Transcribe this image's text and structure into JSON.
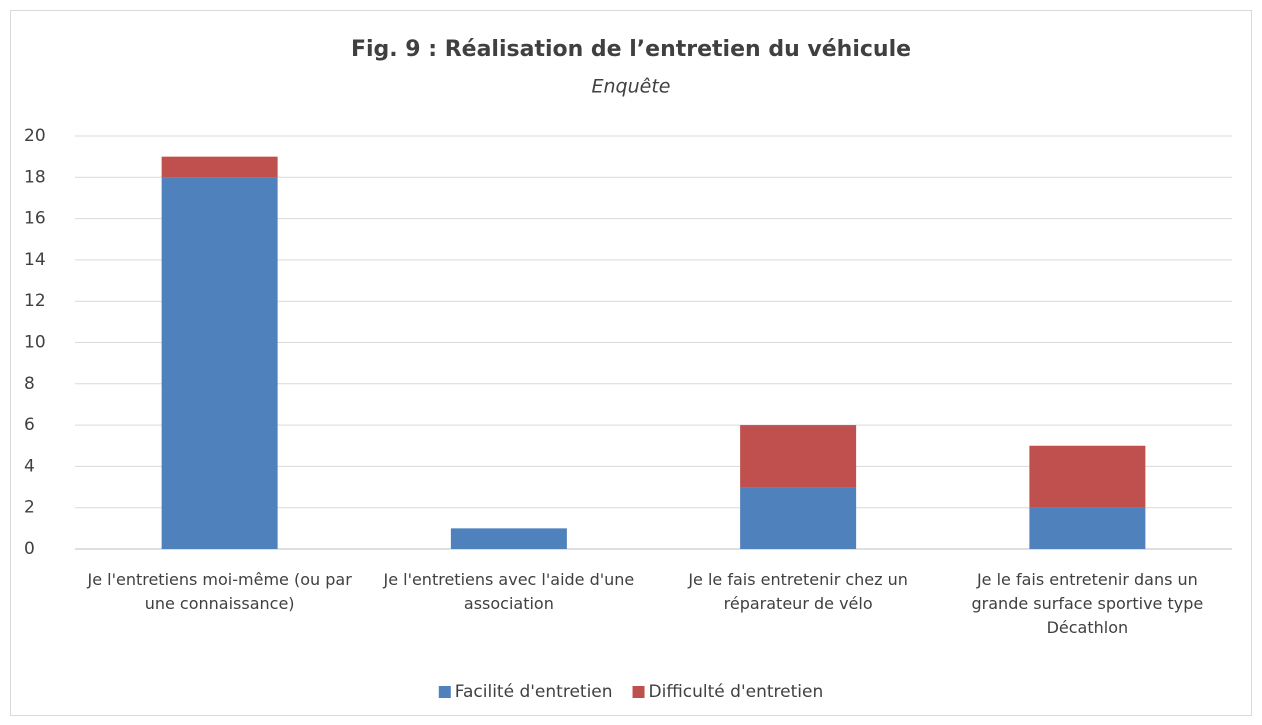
{
  "chart_data": {
    "type": "stacked_bar",
    "title": "Fig. 9 : Réalisation de l’entretien du véhicule",
    "subtitle": "Enquête",
    "categories": [
      "Je l'entretiens moi-même (ou par une connaissance)",
      "Je l'entretiens avec l'aide d'une association",
      "Je le fais entretenir chez un réparateur de vélo",
      "Je le fais entretenir dans un grande surface sportive type Décathlon"
    ],
    "series": [
      {
        "name": "Facilité d'entretien",
        "color": "#4f81bd",
        "values": [
          18,
          1,
          3,
          2
        ]
      },
      {
        "name": "Difficulté d'entretien",
        "color": "#c0504d",
        "values": [
          1,
          0,
          3,
          3
        ]
      }
    ],
    "ylim": [
      0,
      20
    ],
    "yticks": [
      0,
      2,
      4,
      6,
      8,
      10,
      12,
      14,
      16,
      18,
      20
    ],
    "grid": true,
    "legend": "bottom"
  }
}
